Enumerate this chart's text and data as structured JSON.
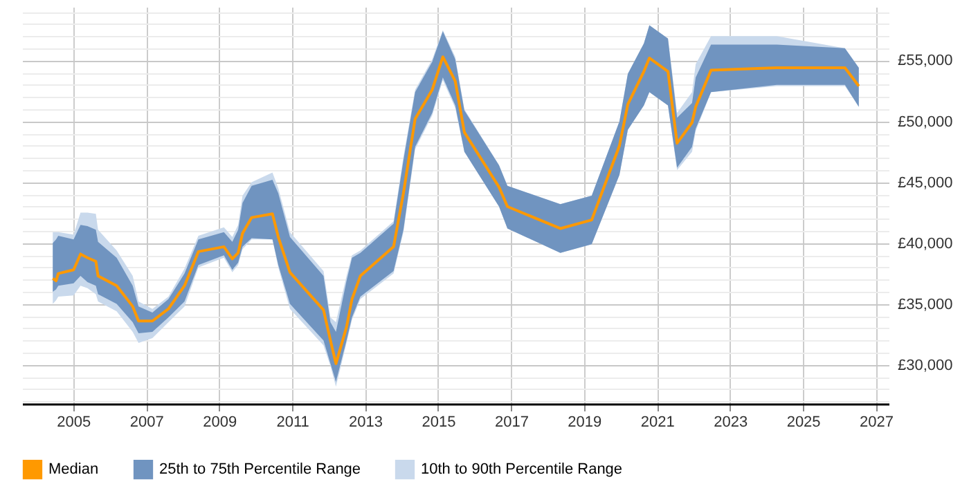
{
  "chart_data": {
    "type": "line",
    "legend": "bottom",
    "grid": true,
    "x": [
      2004.44,
      2004.53,
      2004.59,
      2005.01,
      2005.2,
      2005.39,
      2005.62,
      2005.68,
      2006.19,
      2006.63,
      2006.79,
      2007.17,
      2007.61,
      2008.05,
      2008.43,
      2009.13,
      2009.36,
      2009.52,
      2009.64,
      2009.89,
      2010.46,
      2010.62,
      2010.94,
      2011.86,
      2012.05,
      2012.2,
      2012.49,
      2012.64,
      2012.87,
      2013.78,
      2014.05,
      2014.37,
      2014.84,
      2015.13,
      2015.47,
      2015.72,
      2016.67,
      2016.9,
      2018.35,
      2019.21,
      2019.97,
      2020.2,
      2020.64,
      2020.79,
      2021.3,
      2021.55,
      2021.96,
      2022.06,
      2022.48,
      2024.28,
      2026.15,
      2026.53
    ],
    "series": [
      {
        "name": "Median",
        "type": "line",
        "color": "#ff9900",
        "values": [
          37100,
          36900,
          37500,
          37800,
          39100,
          38800,
          38500,
          37300,
          36500,
          34800,
          33600,
          33600,
          34600,
          36500,
          39300,
          39700,
          38700,
          39200,
          40800,
          42100,
          42400,
          40500,
          37600,
          34500,
          32000,
          30100,
          33100,
          35400,
          37300,
          39700,
          44100,
          50200,
          52600,
          55300,
          53300,
          49100,
          44600,
          43000,
          41200,
          41900,
          48000,
          51400,
          54100,
          55200,
          54100,
          48200,
          49900,
          51200,
          54200,
          54400,
          54400,
          52900
        ]
      },
      {
        "name": "25th to 75th Percentile Range",
        "type": "area",
        "color": "#7094c0",
        "values": [
          null,
          null,
          null,
          null,
          null,
          null,
          null,
          null,
          null,
          null,
          null,
          null,
          null,
          null,
          null,
          null,
          null,
          null,
          null,
          null,
          null,
          null,
          null,
          null,
          null,
          null,
          null,
          null,
          null,
          null,
          null,
          null,
          null,
          null,
          null,
          null,
          null,
          null,
          null,
          null,
          null,
          null,
          null,
          null,
          null,
          null,
          null,
          null,
          null,
          null,
          null,
          null
        ],
        "lower": [
          36000,
          36200,
          36500,
          36700,
          37300,
          36800,
          36500,
          35800,
          35000,
          33500,
          32600,
          32700,
          33900,
          35200,
          38200,
          39000,
          37800,
          38400,
          39700,
          40400,
          40300,
          38200,
          35000,
          32000,
          30100,
          28600,
          32000,
          33900,
          35600,
          37700,
          41100,
          47900,
          50700,
          53600,
          51300,
          47500,
          43000,
          41200,
          39200,
          39900,
          45600,
          49300,
          51300,
          52400,
          51300,
          46200,
          47900,
          49400,
          52400,
          53000,
          53000,
          51200
        ],
        "upper": [
          40000,
          40300,
          40600,
          40300,
          41500,
          41400,
          41100,
          40100,
          38800,
          36500,
          34800,
          34300,
          35400,
          37500,
          40300,
          40900,
          40100,
          41100,
          43300,
          44700,
          45200,
          44100,
          40500,
          37300,
          33500,
          32700,
          36900,
          38800,
          39200,
          41600,
          46800,
          52400,
          54900,
          57400,
          55100,
          50900,
          46400,
          44700,
          43200,
          43900,
          50000,
          53900,
          56400,
          57900,
          56800,
          50300,
          51500,
          53600,
          56300,
          56300,
          56000,
          54400
        ]
      },
      {
        "name": "10th to 90th Percentile Range",
        "type": "area",
        "color": "#c9d9ec",
        "values": [
          null,
          null,
          null,
          null,
          null,
          null,
          null,
          null,
          null,
          null,
          null,
          null,
          null,
          null,
          null,
          null,
          null,
          null,
          null,
          null,
          null,
          null,
          null,
          null,
          null,
          null,
          null,
          null,
          null,
          null,
          null,
          null,
          null,
          null,
          null,
          null,
          null,
          null,
          null,
          null,
          null,
          null,
          null,
          null,
          null,
          null,
          null,
          null,
          null,
          null,
          null,
          null
        ],
        "lower": [
          35000,
          35300,
          35600,
          35700,
          36500,
          36300,
          35800,
          35200,
          34400,
          32700,
          31800,
          32200,
          33500,
          34800,
          38000,
          38800,
          37600,
          38200,
          39500,
          40300,
          40300,
          38000,
          34600,
          31600,
          29900,
          28200,
          31800,
          33700,
          35400,
          37500,
          40900,
          47700,
          50500,
          53400,
          51100,
          47500,
          43000,
          41200,
          39200,
          39900,
          45600,
          49300,
          51300,
          52400,
          51300,
          46000,
          47500,
          49200,
          52400,
          52900,
          52900,
          51200
        ],
        "upper": [
          40900,
          40900,
          40900,
          40700,
          42500,
          42500,
          42400,
          41100,
          39400,
          37300,
          35200,
          34600,
          35600,
          37900,
          40600,
          41300,
          40500,
          41500,
          43900,
          45000,
          45800,
          44500,
          40900,
          37700,
          33900,
          33500,
          37300,
          39000,
          39400,
          41800,
          47100,
          52600,
          55100,
          57500,
          55300,
          51000,
          46400,
          44700,
          43200,
          43900,
          50000,
          53900,
          56400,
          57900,
          56800,
          50700,
          52400,
          54700,
          57000,
          57000,
          56000,
          54400
        ]
      }
    ],
    "xlim": [
      2003.6,
      2027.35
    ],
    "xticks": [
      2005,
      2007,
      2009,
      2011,
      2013,
      2015,
      2017,
      2019,
      2021,
      2023,
      2025,
      2027
    ],
    "ylim": [
      26800,
      59400
    ],
    "yticks": [
      {
        "value": 27000,
        "label": null
      },
      {
        "value": 28000,
        "label": null
      },
      {
        "value": 29000,
        "label": null
      },
      {
        "value": 30000,
        "label": "£30,000"
      },
      {
        "value": 31000,
        "label": null
      },
      {
        "value": 32000,
        "label": null
      },
      {
        "value": 33000,
        "label": null
      },
      {
        "value": 34000,
        "label": null
      },
      {
        "value": 35000,
        "label": "£35,000"
      },
      {
        "value": 36000,
        "label": null
      },
      {
        "value": 37000,
        "label": null
      },
      {
        "value": 38000,
        "label": null
      },
      {
        "value": 39000,
        "label": null
      },
      {
        "value": 40000,
        "label": "£40,000"
      },
      {
        "value": 41000,
        "label": null
      },
      {
        "value": 42000,
        "label": null
      },
      {
        "value": 43000,
        "label": null
      },
      {
        "value": 44000,
        "label": null
      },
      {
        "value": 45000,
        "label": "£45,000"
      },
      {
        "value": 46000,
        "label": null
      },
      {
        "value": 47000,
        "label": null
      },
      {
        "value": 48000,
        "label": null
      },
      {
        "value": 49000,
        "label": null
      },
      {
        "value": 50000,
        "label": "£50,000"
      },
      {
        "value": 51000,
        "label": null
      },
      {
        "value": 52000,
        "label": null
      },
      {
        "value": 53000,
        "label": null
      },
      {
        "value": 54000,
        "label": null
      },
      {
        "value": 55000,
        "label": "£55,000"
      },
      {
        "value": 56000,
        "label": null
      },
      {
        "value": 57000,
        "label": null
      },
      {
        "value": 58000,
        "label": null
      },
      {
        "value": 59000,
        "label": null
      }
    ]
  }
}
